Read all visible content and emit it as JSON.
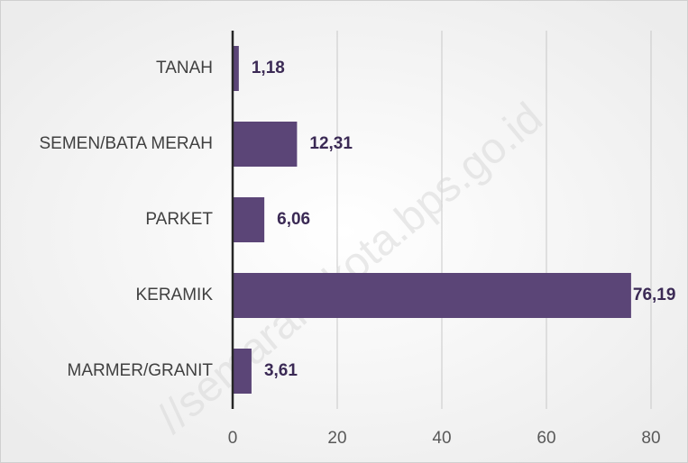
{
  "chart_data": {
    "type": "hbar",
    "categories": [
      "TANAH",
      "SEMEN/BATA MERAH",
      "PARKET",
      "KERAMIK",
      "MARMER/GRANIT"
    ],
    "values": [
      1.18,
      12.31,
      6.06,
      76.19,
      3.61
    ],
    "value_labels": [
      "1,18",
      "12,31",
      "6,06",
      "76,19",
      "3,61"
    ],
    "color": "#5b4577",
    "xlim": [
      0,
      80
    ],
    "xticks": [
      0,
      20,
      40,
      60,
      80
    ],
    "grid": true,
    "watermark": "//semarangkota.bps.go.id"
  }
}
